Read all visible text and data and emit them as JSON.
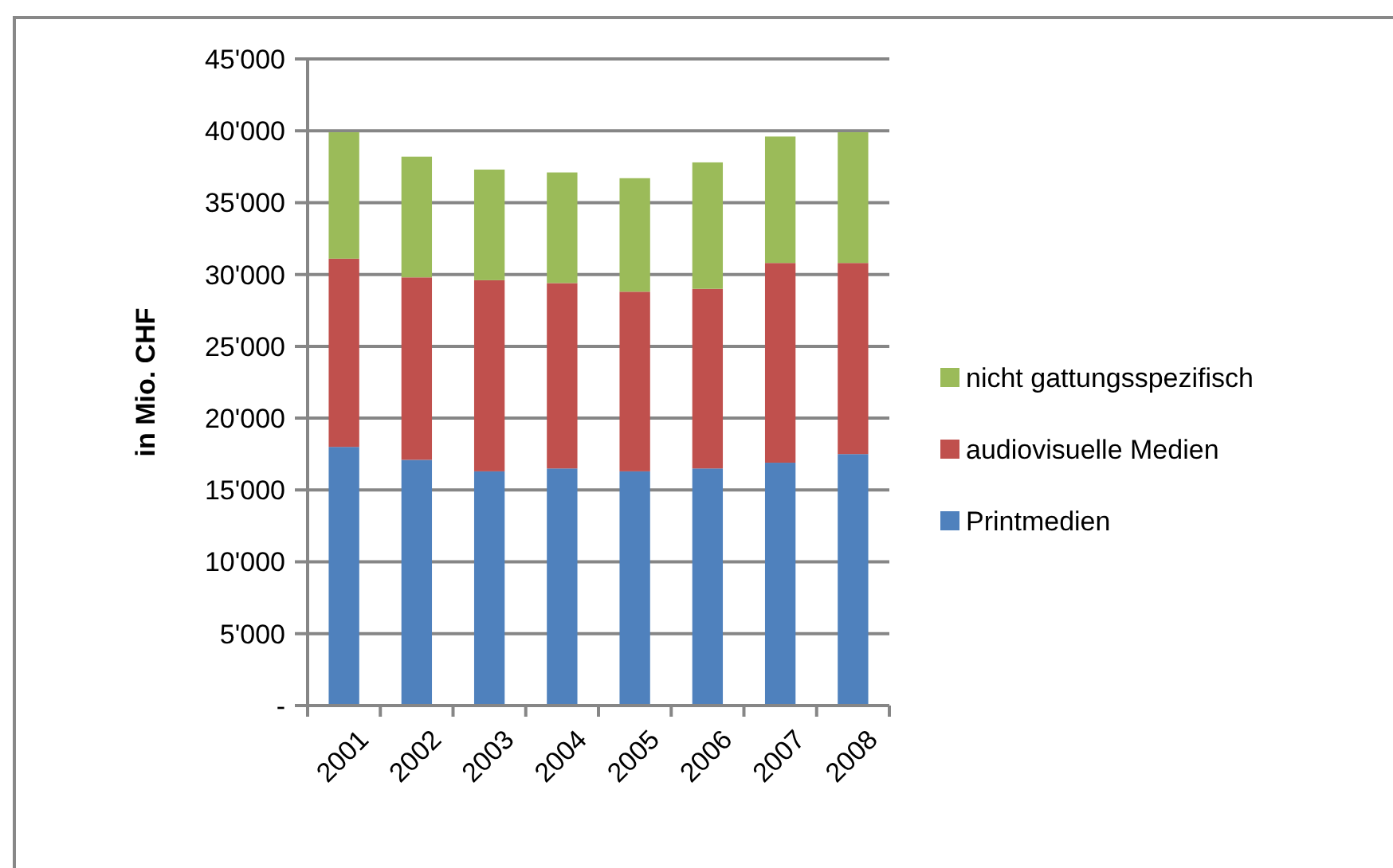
{
  "chart_data": {
    "type": "bar",
    "stacked": true,
    "ylabel": "in Mio. CHF",
    "categories": [
      "2001",
      "2002",
      "2003",
      "2004",
      "2005",
      "2006",
      "2007",
      "2008"
    ],
    "series": [
      {
        "name": "Printmedien",
        "color": "#4f81bd",
        "values": [
          18000,
          17100,
          16300,
          16500,
          16300,
          16500,
          16900,
          17500
        ]
      },
      {
        "name": "audiovisuelle Medien",
        "color": "#c0504d",
        "values": [
          13100,
          12700,
          13300,
          12900,
          12500,
          12500,
          13900,
          13300
        ]
      },
      {
        "name": "nicht gattungsspezifisch",
        "color": "#9bbb59",
        "values": [
          8800,
          8400,
          7700,
          7700,
          7900,
          8800,
          8800,
          9100
        ]
      }
    ],
    "ylim": [
      0,
      45000
    ],
    "yticks": [
      {
        "value": 0,
        "label": "-"
      },
      {
        "value": 5000,
        "label": "5'000"
      },
      {
        "value": 10000,
        "label": "10'000"
      },
      {
        "value": 15000,
        "label": "15'000"
      },
      {
        "value": 20000,
        "label": "20'000"
      },
      {
        "value": 25000,
        "label": "25'000"
      },
      {
        "value": 30000,
        "label": "30'000"
      },
      {
        "value": 35000,
        "label": "35'000"
      },
      {
        "value": 40000,
        "label": "40'000"
      },
      {
        "value": 45000,
        "label": "45'000"
      }
    ],
    "grid": "y",
    "legend": "right"
  }
}
